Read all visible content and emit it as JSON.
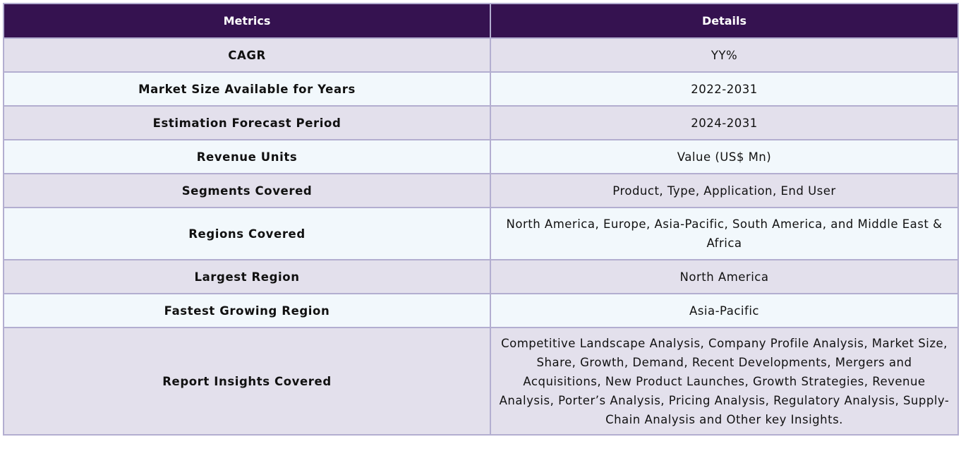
{
  "table": {
    "headers": {
      "metrics": "Metrics",
      "details": "Details"
    },
    "rows": [
      {
        "metric": "CAGR",
        "detail": "YY%"
      },
      {
        "metric": "Market Size Available for Years",
        "detail": "2022-2031"
      },
      {
        "metric": "Estimation Forecast Period",
        "detail": "2024-2031"
      },
      {
        "metric": "Revenue Units",
        "detail": "Value (US$ Mn)"
      },
      {
        "metric": "Segments Covered",
        "detail": "Product, Type, Application, End User"
      },
      {
        "metric": "Regions Covered",
        "detail": "North America, Europe, Asia-Pacific, South America, and Middle East & Africa"
      },
      {
        "metric": "Largest Region",
        "detail": "North America"
      },
      {
        "metric": "Fastest Growing Region",
        "detail": "Asia-Pacific"
      },
      {
        "metric": "Report Insights Covered",
        "detail": "Competitive Landscape Analysis, Company Profile Analysis, Market Size, Share, Growth, Demand, Recent Developments, Mergers and Acquisitions, New Product Launches, Growth Strategies, Revenue Analysis, Porter’s Analysis, Pricing Analysis, Regulatory Analysis, Supply-Chain Analysis and Other key Insights."
      }
    ]
  },
  "colors": {
    "header_bg": "#351250",
    "header_text": "#ffffff",
    "row_odd_bg": "#e3e0ec",
    "row_even_bg": "#f2f8fc",
    "border": "#b3aed0"
  }
}
